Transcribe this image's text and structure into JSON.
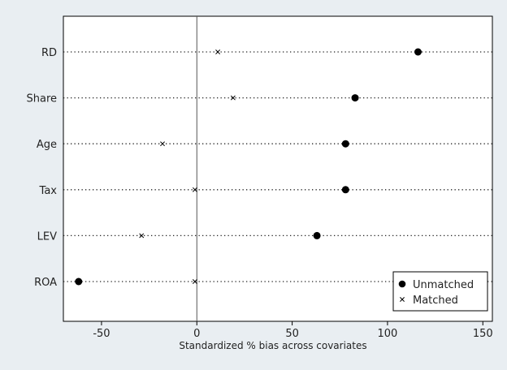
{
  "chart_data": {
    "type": "scatter",
    "xlabel": "Standardized % bias across covariates",
    "xlim": [
      -70,
      155
    ],
    "xticks": [
      -50,
      0,
      50,
      100,
      150
    ],
    "categories": [
      "RD",
      "Share",
      "Age",
      "Tax",
      "LEV",
      "ROA"
    ],
    "series": [
      {
        "name": "Unmatched",
        "marker": "dot",
        "values": [
          116,
          83,
          78,
          78,
          63,
          -62
        ]
      },
      {
        "name": "Matched",
        "marker": "x",
        "values": [
          11,
          19,
          -18,
          -1,
          -29,
          -1
        ]
      }
    ],
    "reference_line": 0,
    "legend": "bottom-right",
    "grid": "dotted horizontal",
    "colors": {
      "background": "#e9eef2",
      "plot": "#ffffff",
      "marker": "#000000",
      "frame": "#000000"
    }
  }
}
